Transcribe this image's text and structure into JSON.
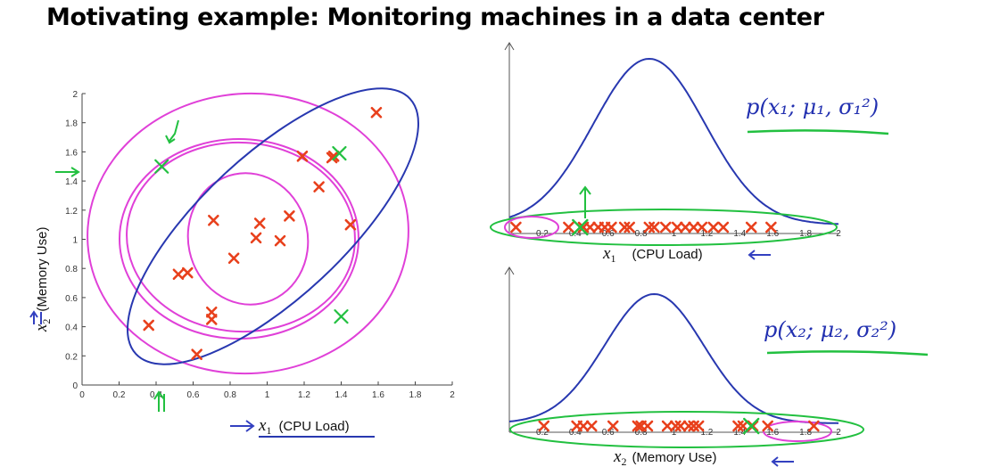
{
  "page": {
    "title": "Motivating example: Monitoring machines in a data center"
  },
  "chart_data": [
    {
      "type": "scatter",
      "xlabel": "x1 (CPU Load)",
      "xlabel_var": "x",
      "xlabel_sub": "1",
      "xlabel_text": "(CPU Load)",
      "ylabel": "x2 (Memory Use)",
      "ylabel_var": "x",
      "ylabel_sub": "2",
      "ylabel_text": "(Memory Use)",
      "xlim": [
        0,
        2
      ],
      "ylim": [
        0,
        2
      ],
      "xticks": [
        "0",
        "0.2",
        "0.4",
        "0.6",
        "0.8",
        "1",
        "1.2",
        "1.4",
        "1.6",
        "1.8",
        "2"
      ],
      "yticks": [
        "0",
        "0.2",
        "0.4",
        "0.6",
        "0.8",
        "1",
        "1.2",
        "1.4",
        "1.6",
        "1.8",
        "2"
      ],
      "points": [
        {
          "x": 0.36,
          "y": 0.41
        },
        {
          "x": 0.52,
          "y": 0.76
        },
        {
          "x": 0.57,
          "y": 0.77
        },
        {
          "x": 0.62,
          "y": 0.21
        },
        {
          "x": 0.7,
          "y": 0.5
        },
        {
          "x": 0.7,
          "y": 0.45
        },
        {
          "x": 0.71,
          "y": 1.13
        },
        {
          "x": 0.82,
          "y": 0.87
        },
        {
          "x": 0.94,
          "y": 1.01
        },
        {
          "x": 0.96,
          "y": 1.11
        },
        {
          "x": 1.07,
          "y": 0.99
        },
        {
          "x": 1.12,
          "y": 1.16
        },
        {
          "x": 1.19,
          "y": 1.57
        },
        {
          "x": 1.28,
          "y": 1.36
        },
        {
          "x": 1.35,
          "y": 1.56
        },
        {
          "x": 1.36,
          "y": 1.57
        },
        {
          "x": 1.45,
          "y": 1.1
        },
        {
          "x": 1.59,
          "y": 1.87
        }
      ],
      "anomalies": [
        {
          "x": 0.43,
          "y": 1.5
        },
        {
          "x": 1.4,
          "y": 0.47
        },
        {
          "x": 1.39,
          "y": 1.59
        }
      ],
      "annotation_colors": {
        "contours": "#e040d8",
        "ellipse": "#2838b0",
        "points": "#e8401c",
        "anomaly": "#22c040",
        "arrows": "#3340c0"
      }
    },
    {
      "type": "line",
      "title": "p(x1; μ1, σ1²)",
      "xlabel": "x1 (CPU Load)",
      "xlabel_var": "x",
      "xlabel_sub": "1",
      "xlabel_text": "(CPU Load)",
      "xlim": [
        0,
        2
      ],
      "xticks": [
        "0.2",
        "0.4",
        "0.6",
        "0.8",
        "1",
        "1.2",
        "1.4",
        "1.6",
        "1.8",
        "2"
      ],
      "curve": {
        "mean": 0.85,
        "sigma": 0.34
      },
      "marks_x": [
        0.04,
        0.36,
        0.45,
        0.49,
        0.54,
        0.58,
        0.62,
        0.7,
        0.73,
        0.85,
        0.88,
        0.95,
        1.02,
        1.07,
        1.12,
        1.17,
        1.24,
        1.3,
        1.47,
        1.59
      ],
      "anomaly_x": 0.43
    },
    {
      "type": "line",
      "title": "p(x2; μ2, σ2²)",
      "xlabel": "x2 (Memory Use)",
      "xlabel_var": "x",
      "xlabel_sub": "2",
      "xlabel_text": "(Memory Use)",
      "xlim": [
        0,
        2
      ],
      "xticks": [
        "0.2",
        "0.4",
        "0.6",
        "0.8",
        "1",
        "1.2",
        "1.4",
        "1.6",
        "1.8",
        "2"
      ],
      "curve": {
        "mean": 0.88,
        "sigma": 0.3
      },
      "marks_x": [
        0.21,
        0.41,
        0.45,
        0.5,
        0.63,
        0.78,
        0.8,
        0.84,
        0.96,
        1.01,
        1.04,
        1.09,
        1.12,
        1.15,
        1.39,
        1.42,
        1.48,
        1.57,
        1.85
      ],
      "anomaly_x": 1.47
    }
  ],
  "formulas": {
    "top": "p(x₁; μ₁, σ₁²)",
    "bottom": "p(x₂; μ₂, σ₂²)"
  }
}
